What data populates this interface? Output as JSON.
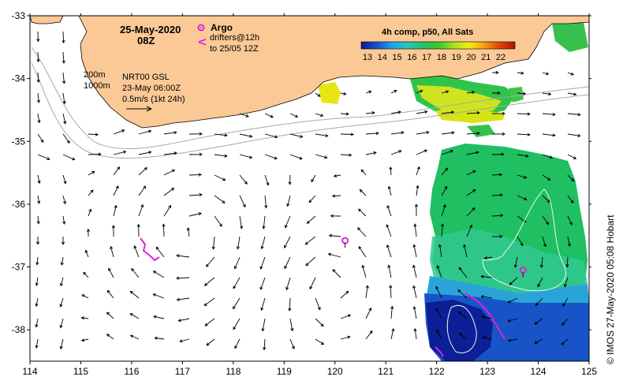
{
  "map": {
    "date": "25-May-2020",
    "time": "08Z",
    "argo_label": "Argo",
    "drifter_symbol": "<",
    "drifter_label_1": "drifters@12h",
    "drifter_label_2": "to 25/05 12Z",
    "isobath_1": "200m",
    "isobath_2": "1000m",
    "altimetry": "NRT00 GSL",
    "altimetry_date": "23-May 06:00Z",
    "scale_label": "0.5m/s (1kt 24h)",
    "credit": "© IMOS 27-May-2020 05:08 Hobart"
  },
  "colorbar": {
    "title": "4h comp, p50, All Sats",
    "ticks": [
      "13",
      "14",
      "15",
      "16",
      "17",
      "18",
      "19",
      "20",
      "21",
      "22"
    ],
    "colors": [
      "#0a1a8a",
      "#1b4fd1",
      "#1fa0e8",
      "#25c7c0",
      "#27c06a",
      "#35c834",
      "#a6de1e",
      "#f2ee10",
      "#f6a010",
      "#e0400c",
      "#b41208"
    ]
  },
  "axes": {
    "x_ticks": [
      "114",
      "115",
      "116",
      "117",
      "118",
      "119",
      "120",
      "121",
      "122",
      "123",
      "124",
      "125"
    ],
    "y_ticks": [
      "-33",
      "-34",
      "-35",
      "-36",
      "-37",
      "-38"
    ],
    "lon_range": [
      114,
      125
    ],
    "lat_range": [
      -33,
      -38.5
    ]
  },
  "colors": {
    "land": "#fbc995",
    "argo": "#e020e0",
    "drifter": "#e020e0",
    "isobath": "#a8a8a8"
  },
  "argo_floats": [
    {
      "lon": 120.2,
      "lat": -36.58
    },
    {
      "lon": 123.7,
      "lat": -37.05
    }
  ]
}
